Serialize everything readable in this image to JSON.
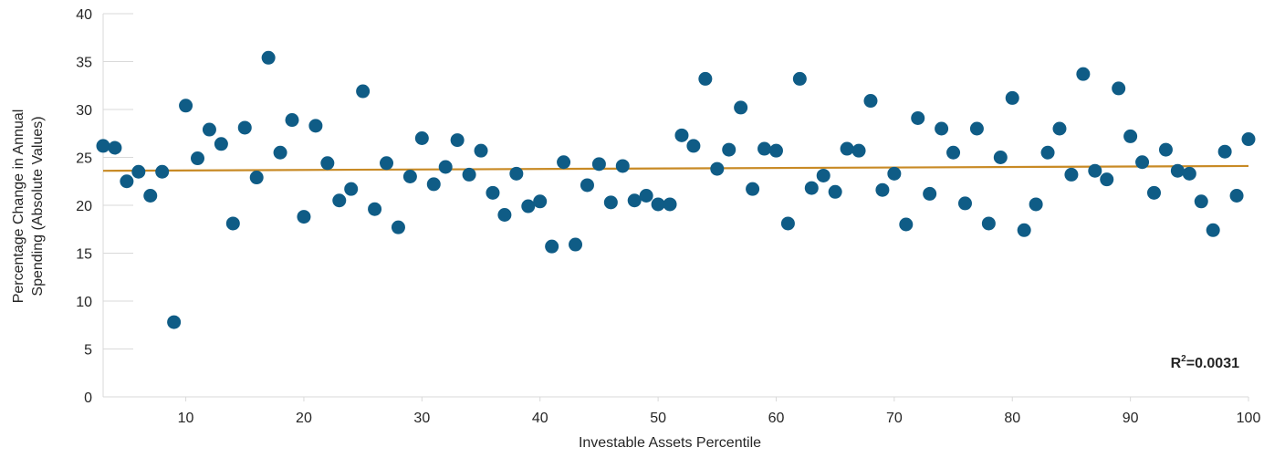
{
  "chart_data": {
    "type": "scatter",
    "title": "",
    "xlabel": "Investable Assets Percentile",
    "ylabel_lines": [
      "Percentage Change in Annual",
      "Spending (Absolute Values)"
    ],
    "xlim": [
      3,
      100
    ],
    "ylim": [
      0,
      40
    ],
    "x_ticks": [
      10,
      20,
      30,
      40,
      50,
      60,
      70,
      80,
      90,
      100
    ],
    "y_ticks": [
      0,
      5,
      10,
      15,
      20,
      25,
      30,
      35,
      40
    ],
    "grid": false,
    "legend": "none",
    "annotation": {
      "prefix": "R",
      "sup": "2",
      "suffix": "=0.0031"
    },
    "colors": {
      "points": "#0f5c86",
      "trendline": "#c88a25",
      "axis": "#d9d9d9",
      "text": "#262626"
    },
    "trendline": {
      "x": [
        3,
        100
      ],
      "y": [
        23.6,
        24.1
      ]
    },
    "series": [
      {
        "x": [
          3,
          4,
          5,
          6,
          7,
          8,
          9,
          10,
          11,
          12,
          13,
          14,
          15,
          16,
          17,
          18,
          19,
          20,
          21,
          22,
          23,
          24,
          25,
          26,
          27,
          28,
          29,
          30,
          31,
          32,
          33,
          34,
          35,
          36,
          37,
          38,
          39,
          40,
          41,
          42,
          43,
          44,
          45,
          46,
          47,
          48,
          49,
          50,
          51,
          52,
          53,
          54,
          55,
          56,
          57,
          58,
          59,
          60,
          61,
          62,
          63,
          64,
          65,
          66,
          67,
          68,
          69,
          70,
          71,
          72,
          73,
          74,
          75,
          76,
          77,
          78,
          79,
          80,
          81,
          82,
          83,
          84,
          85,
          86,
          87,
          88,
          89,
          90,
          91,
          92,
          93,
          94,
          95,
          96,
          97,
          98,
          99,
          100
        ],
        "y": [
          26.2,
          26.0,
          22.5,
          23.5,
          21.0,
          23.5,
          7.8,
          30.4,
          24.9,
          27.9,
          26.4,
          18.1,
          28.1,
          22.9,
          35.4,
          25.5,
          28.9,
          18.8,
          28.3,
          24.4,
          20.5,
          21.7,
          31.9,
          19.6,
          24.4,
          17.7,
          23.0,
          27.0,
          22.2,
          24.0,
          26.8,
          23.2,
          25.7,
          21.3,
          19.0,
          23.3,
          19.9,
          20.4,
          15.7,
          24.5,
          15.9,
          22.1,
          24.3,
          20.3,
          24.1,
          20.5,
          21.0,
          20.1,
          20.1,
          27.3,
          26.2,
          33.2,
          23.8,
          25.8,
          30.2,
          21.7,
          25.9,
          25.7,
          18.1,
          33.2,
          21.8,
          23.1,
          21.4,
          25.9,
          25.7,
          30.9,
          21.6,
          23.3,
          18.0,
          29.1,
          21.2,
          28.0,
          25.5,
          20.2,
          28.0,
          18.1,
          25.0,
          31.2,
          17.4,
          20.1,
          25.5,
          28.0,
          23.2,
          33.7,
          23.6,
          22.7,
          32.2,
          27.2,
          24.5,
          21.3,
          25.8,
          23.6,
          23.3,
          20.4,
          17.4,
          25.6,
          21.0,
          26.9
        ]
      }
    ]
  }
}
